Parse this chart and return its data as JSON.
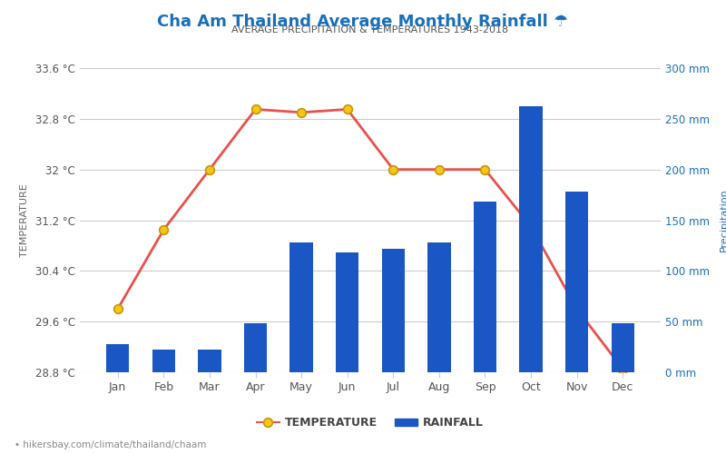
{
  "title": "Cha Am Thailand Average Monthly Rainfall ☂",
  "subtitle": "AVERAGE PRECIPITATION & TEMPERATURES 1943-2018",
  "months": [
    "Jan",
    "Feb",
    "Mar",
    "Apr",
    "May",
    "Jun",
    "Jul",
    "Aug",
    "Sep",
    "Oct",
    "Nov",
    "Dec"
  ],
  "temperature": [
    29.8,
    31.05,
    32.0,
    32.95,
    32.9,
    32.95,
    32.0,
    32.0,
    32.0,
    31.1,
    29.8,
    28.85
  ],
  "rainfall": [
    28,
    22,
    22,
    48,
    128,
    118,
    122,
    128,
    168,
    262,
    178,
    48
  ],
  "temp_ylim": [
    28.8,
    33.6
  ],
  "rain_ylim": [
    0,
    300
  ],
  "temp_yticks": [
    28.8,
    29.6,
    30.4,
    31.2,
    32.0,
    32.8,
    33.6
  ],
  "rain_yticks": [
    0,
    50,
    100,
    150,
    200,
    250,
    300
  ],
  "temp_ytick_labels": [
    "28.8 °C",
    "29.6 °C",
    "30.4 °C",
    "31.2 °C",
    "32 °C",
    "32.8 °C",
    "33.6 °C"
  ],
  "rain_ytick_labels": [
    "0 mm",
    "50 mm",
    "100 mm",
    "150 mm",
    "200 mm",
    "250 mm",
    "300 mm"
  ],
  "bar_color": "#1a56c4",
  "line_color": "#e8524a",
  "marker_facecolor": "#f5c518",
  "marker_edgecolor": "#c8960a",
  "title_color": "#1a6fba",
  "subtitle_color": "#555555",
  "ylabel_left": "TEMPERATURE",
  "ylabel_right": "Precipitation",
  "ylabel_color_left": "#666666",
  "ylabel_color_right": "#1a6fba",
  "axis_label_color": "#555555",
  "tick_color_right": "#1a6fba",
  "bg_color": "#ffffff",
  "grid_color": "#cccccc",
  "footer_text": "• hikersbay.com/climate/thailand/chaam",
  "legend_temp_label": "TEMPERATURE",
  "legend_rain_label": "RAINFALL"
}
